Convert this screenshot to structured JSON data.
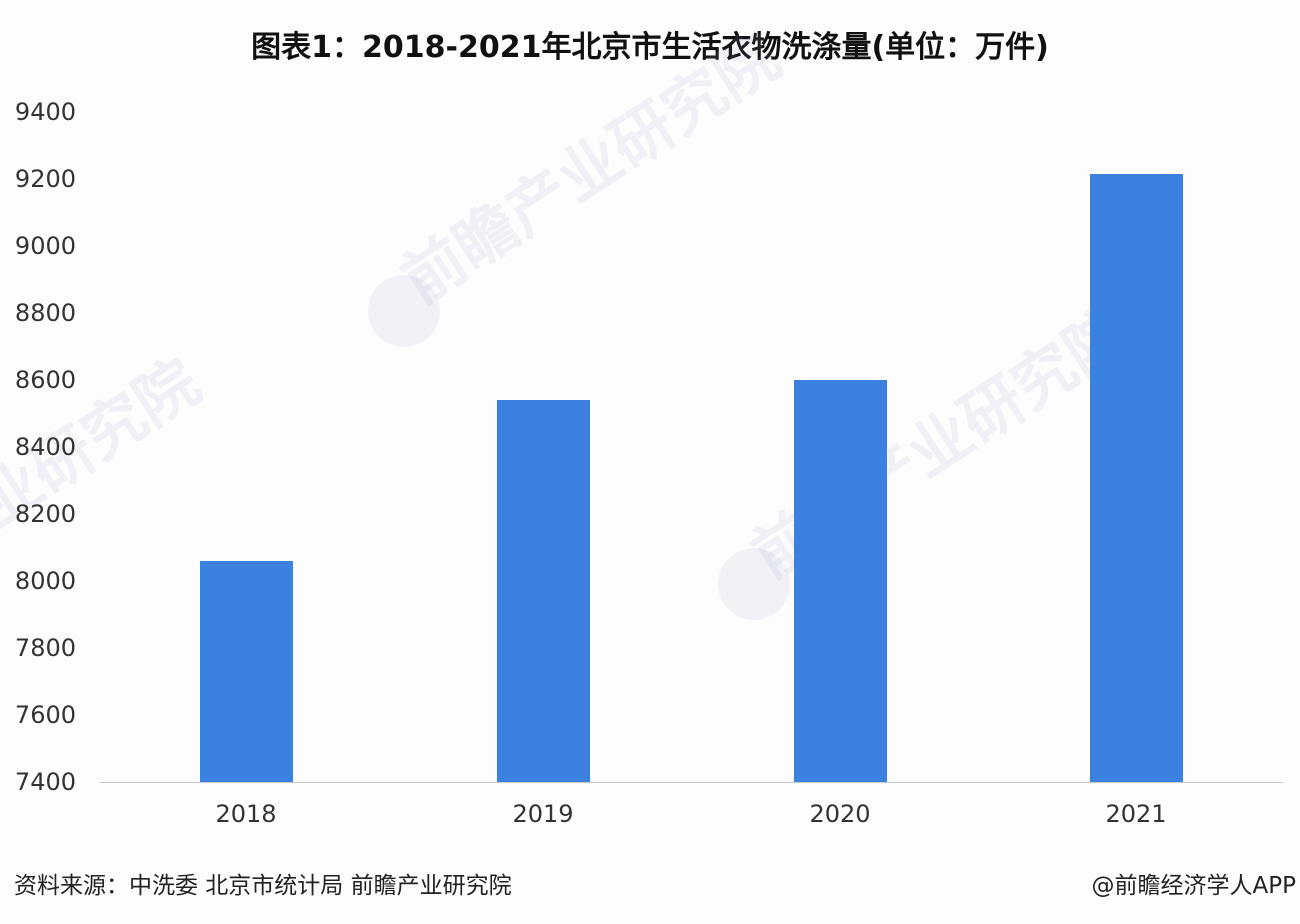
{
  "chart_data": {
    "type": "bar",
    "title": "图表1：2018-2021年北京市生活衣物洗涤量(单位：万件)",
    "categories": [
      "2018",
      "2019",
      "2020",
      "2021"
    ],
    "values": [
      8060,
      8540,
      8600,
      9215
    ],
    "series": [
      {
        "name": "生活衣物洗涤量",
        "values": [
          8060,
          8540,
          8600,
          9215
        ]
      }
    ],
    "xlabel": "",
    "ylabel": "",
    "unit": "万件",
    "ylim": [
      7400,
      9400
    ],
    "yticks": [
      "9400",
      "9200",
      "9000",
      "8800",
      "8600",
      "8400",
      "8200",
      "8000",
      "7800",
      "7600",
      "7400"
    ],
    "grid": false,
    "legend": "none",
    "bar_color": "#3b82e0"
  },
  "footer": {
    "source": "资料来源：中洗委 北京市统计局 前瞻产业研究院",
    "credit": "@前瞻经济学人APP"
  },
  "watermark": {
    "text": "前瞻产业研究院"
  }
}
